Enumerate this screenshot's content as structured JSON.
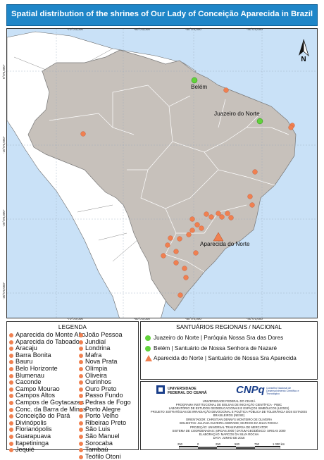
{
  "title": "Spatial distribution of the shrines of Our Lady of Conceição Aparecida in Brazil",
  "map": {
    "north_label": "N",
    "coords_top": [
      "-70°0'0,000\"",
      "-60°0'0,000\"",
      "-50°0'0,000\"",
      "-40°0'0,000\""
    ],
    "coords_left": [
      "0°0'0,000\"",
      "-10°0'0,000\"",
      "-20°0'0,000\"",
      "-30°0'0,000\""
    ],
    "city_labels": {
      "belem": "Belém",
      "juazeiro": "Juazeiro do Norte",
      "aparecida": "Aparecida do Norte"
    },
    "colors": {
      "ocean": "#c9e1f7",
      "brazil": "#c7c1bb",
      "neighbors": "#ffffff",
      "shrine": "#f08050",
      "regional": "#62d23b"
    }
  },
  "legend": {
    "title": "LEGENDA",
    "column1": [
      "Aparecida do Monte Alto",
      "Aparecida do Taboado",
      "Aracaju",
      "Barra Bonita",
      "Bauru",
      "Belo Horizonte",
      "Blumenau",
      "Caconde",
      "Campo Mourao",
      "Campos Altos",
      "Campos de Goytacazes",
      "Conc. da Barra de Minas",
      "Conceição do Pará",
      "Divinópolis",
      "Florianópolis",
      "Guarapuava",
      "Itapetininga",
      "Jequié"
    ],
    "column2": [
      "João Pessoa",
      "Jundiaí",
      "Londrina",
      "Mafra",
      "Nova Prata",
      "Olímpia",
      "Oliveira",
      "Ourinhos",
      "Ouro Preto",
      "Passo Fundo",
      "Pedras de Fogo",
      "Porto Alegre",
      "Porto Velho",
      "Ribeirao Preto",
      "São Luis",
      "São Manuel",
      "Sorocaba",
      "Tambaú",
      "Teófilo Otoni"
    ]
  },
  "regional": {
    "title": "SANTUÁRIOS REGIONAIS / NACIONAL",
    "items": [
      "Juazeiro do Norte | Paróquia Nossa Sra das Dores",
      "Belém | Santuário de Nossa Senhora de Nazaré",
      "Aparecida do Norte | Santuário de Nossa Sra Aparecida"
    ]
  },
  "institution": {
    "ufc_lines": [
      "UNIVERSIDADE",
      "FEDERAL DO CEARÁ"
    ],
    "cnpq": "CNPq",
    "cnpq_sub": "Conselho Nacional de Desenvolvimento Científico e Tecnológico",
    "credits": [
      "UNIVERSIDADE FEDERAL DO CEARÁ",
      "PROGRAMA INSTITUCIONAL DE BOLSAS DE INICIAÇÃO CIENTÍFICA - PIBIC",
      "LABORATÓRIO DE ESTUDOS GEOEDUCACIONAIS E ESPAÇOS SIMBÓLICOS (LEGES)",
      "PROJETO: ESTRATÉGIAS DE IRRADIAÇÃO DEVOCIONAL E POLÍTICA PÚBLICA DE TOLERÂNCIA DOS ESTADOS",
      "BRASILEIROS (NE/SE)",
      "ORIENTADOR: CHRISTIAN DENNYS MONTEIRO DE OLIVEIRA",
      "BOLSISTAS: JULIANA OLIVEIRA ANDRADE; MARCOS DA SILVA ROCHA",
      "PROJEÇÃO: UNIVERSAL TRANSVERSA DE MERCATOR",
      "SISTEMA DE COORDENADAS: SIRGAS 2000 | DATUM GEODÉSICO: SIRGAS 2000",
      "ELABORAÇÃO: MARCOS DA SILVA ROCHA",
      "DATA: JUNHO DE 2016"
    ],
    "scale_labels": [
      "250",
      "0",
      "250",
      "500",
      "750",
      "1 000 km"
    ]
  }
}
